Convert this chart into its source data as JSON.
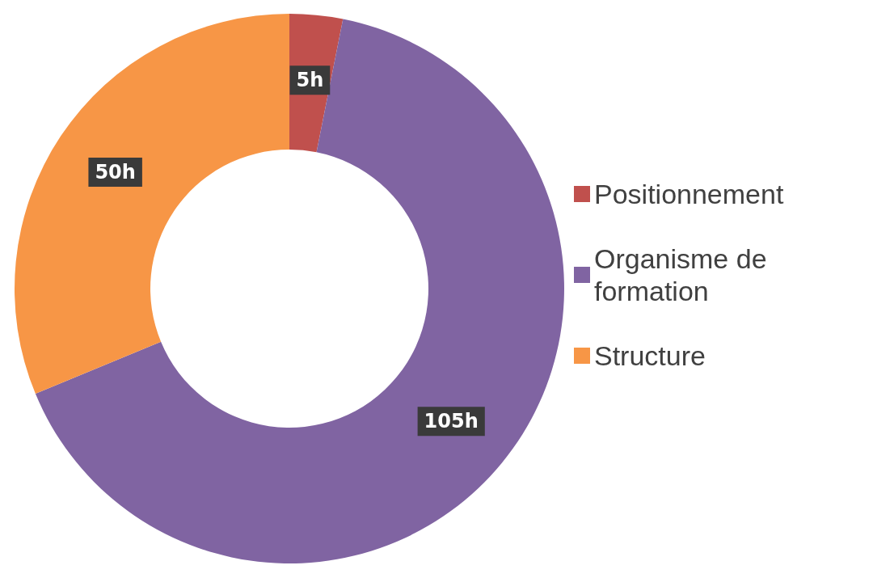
{
  "chart_data": {
    "type": "donut",
    "categories": [
      "Positionnement",
      "Organisme de formation",
      "Structure"
    ],
    "values": [
      5,
      105,
      50
    ],
    "colors": [
      "#c0504d",
      "#8064a2",
      "#f79646"
    ],
    "value_labels": [
      "5h",
      "105h",
      "50h"
    ],
    "legend": "right"
  }
}
